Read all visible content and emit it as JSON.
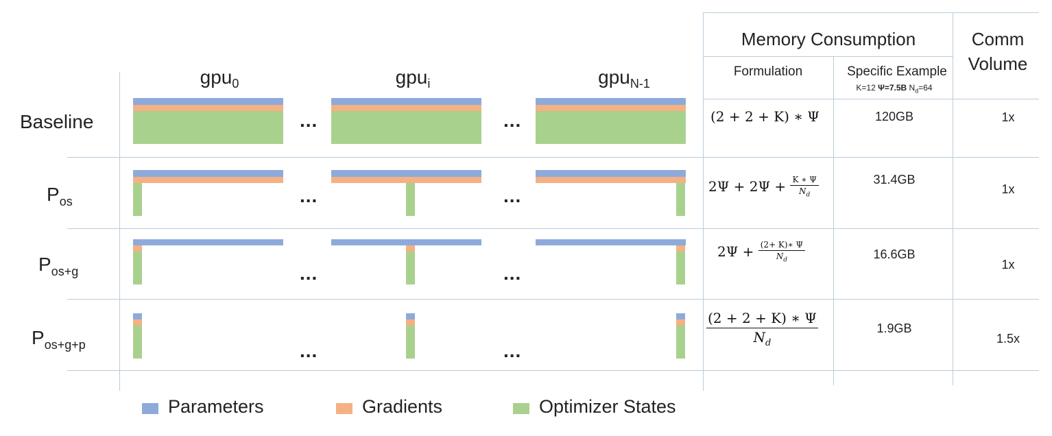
{
  "colors": {
    "parameters": "#8eaadb",
    "gradients": "#f4b183",
    "optimizer_states": "#a9d18e",
    "grid": "#b9ccd9"
  },
  "gpu_headers": [
    {
      "base": "gpu",
      "sub": "0"
    },
    {
      "base": "gpu",
      "sub": "i"
    },
    {
      "base": "gpu",
      "sub": "N-1"
    }
  ],
  "ellipsis": "...",
  "rows": [
    {
      "label": "Baseline",
      "label_sub": "",
      "formula_id": "baseline",
      "example": "120GB",
      "comm": "1x"
    },
    {
      "label": "P",
      "label_sub": "os",
      "formula_id": "pos",
      "example": "31.4GB",
      "comm": "1x"
    },
    {
      "label": "P",
      "label_sub": "os+g",
      "formula_id": "posg",
      "example": "16.6GB",
      "comm": "1x"
    },
    {
      "label": "P",
      "label_sub": "os+g+p",
      "formula_id": "posgp",
      "example": "1.9GB",
      "comm": "1.5x"
    }
  ],
  "table": {
    "memory_header": "Memory Consumption",
    "comm_header_line1": "Comm",
    "comm_header_line2": "Volume",
    "formulation_header": "Formulation",
    "example_header": "Specific Example",
    "example_params": {
      "k": "K=12",
      "psi": "Ψ=7.5B",
      "nd_base": "N",
      "nd_sub": "d",
      "nd_val": "=64"
    }
  },
  "formulas": {
    "baseline": {
      "text": "(2 + 2 + K) ∗ Ψ"
    },
    "pos": {
      "lead": "2Ψ + 2Ψ + ",
      "num": "K ∗ Ψ",
      "den": "N",
      "den_sub": "d"
    },
    "posg": {
      "lead": "2Ψ + ",
      "num": "(2+ K)∗ Ψ",
      "den": "N",
      "den_sub": "d"
    },
    "posgp": {
      "num": "(2 +  2 +  K) ∗  Ψ",
      "den": "N",
      "den_sub": "d"
    }
  },
  "legend": [
    {
      "key": "parameters",
      "label": "Parameters"
    },
    {
      "key": "gradients",
      "label": "Gradients"
    },
    {
      "key": "optimizer_states",
      "label": "Optimizer States"
    }
  ]
}
